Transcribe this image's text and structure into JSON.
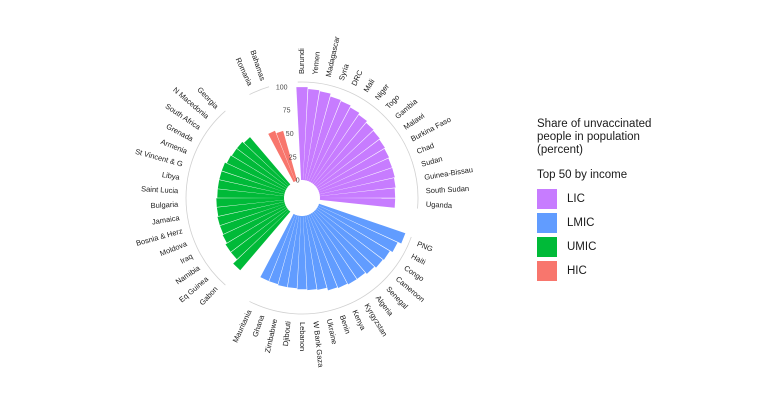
{
  "chart_data": {
    "type": "bar",
    "layout": "circular",
    "title": "Share of unvaccinated people in population (percent)",
    "subtitle": "Top 50 by income",
    "ylim": [
      0,
      100
    ],
    "yticks": [
      0,
      25,
      50,
      75,
      100
    ],
    "groups": [
      {
        "name": "LIC",
        "color": "#c77cff",
        "categories": [
          "Burundi",
          "Yemen",
          "Madagascar",
          "Syria",
          "DRC",
          "Mali",
          "Niger",
          "Togo",
          "Gambia",
          "Malawi",
          "Burkina Faso",
          "Chad",
          "Sudan",
          "Guinea-Bissau",
          "South Sudan",
          "Uganda"
        ],
        "values": [
          99,
          97,
          96,
          93,
          92,
          90,
          88,
          86,
          85,
          84,
          83,
          82,
          82,
          81,
          80,
          80
        ]
      },
      {
        "name": "LMIC",
        "color": "#619cff",
        "categories": [
          "PNG",
          "Haiti",
          "Congo",
          "Cameroon",
          "Senegal",
          "Algeria",
          "Kyrgyzstan",
          "Kenya",
          "Benin",
          "Ukraine",
          "W Bank Gaza",
          "Lebanon",
          "Djibouti",
          "Zimbabwe",
          "Ghana",
          "Mauritania"
        ],
        "values": [
          97,
          93,
          90,
          89,
          87,
          85,
          85,
          84,
          83,
          80,
          79,
          78,
          77,
          77,
          76,
          76
        ]
      },
      {
        "name": "UMIC",
        "color": "#00ba38",
        "categories": [
          "Gabon",
          "Eq Guinea",
          "Namibia",
          "Iraq",
          "Moldova",
          "Bosnia & Herz",
          "Jamaica",
          "Bulgaria",
          "Saint Lucia",
          "Libya",
          "St Vincent & G",
          "Armenia",
          "Grenada",
          "South Africa",
          "N Macedonia",
          "Georgia"
        ],
        "values": [
          82,
          76,
          76,
          74,
          73,
          73,
          72,
          72,
          71,
          71,
          71,
          71,
          69,
          68,
          68,
          66
        ]
      },
      {
        "name": "HIC",
        "color": "#f8766d",
        "categories": [
          "Romania",
          "Bahamas"
        ],
        "values": [
          58,
          55
        ]
      }
    ]
  },
  "legend": {
    "title": "Share of unvaccinated people in population (percent)",
    "subtitle": "Top 50 by income",
    "items": [
      {
        "label": "LIC",
        "color": "#c77cff"
      },
      {
        "label": "LMIC",
        "color": "#619cff"
      },
      {
        "label": "UMIC",
        "color": "#00ba38"
      },
      {
        "label": "HIC",
        "color": "#f8766d"
      }
    ]
  }
}
